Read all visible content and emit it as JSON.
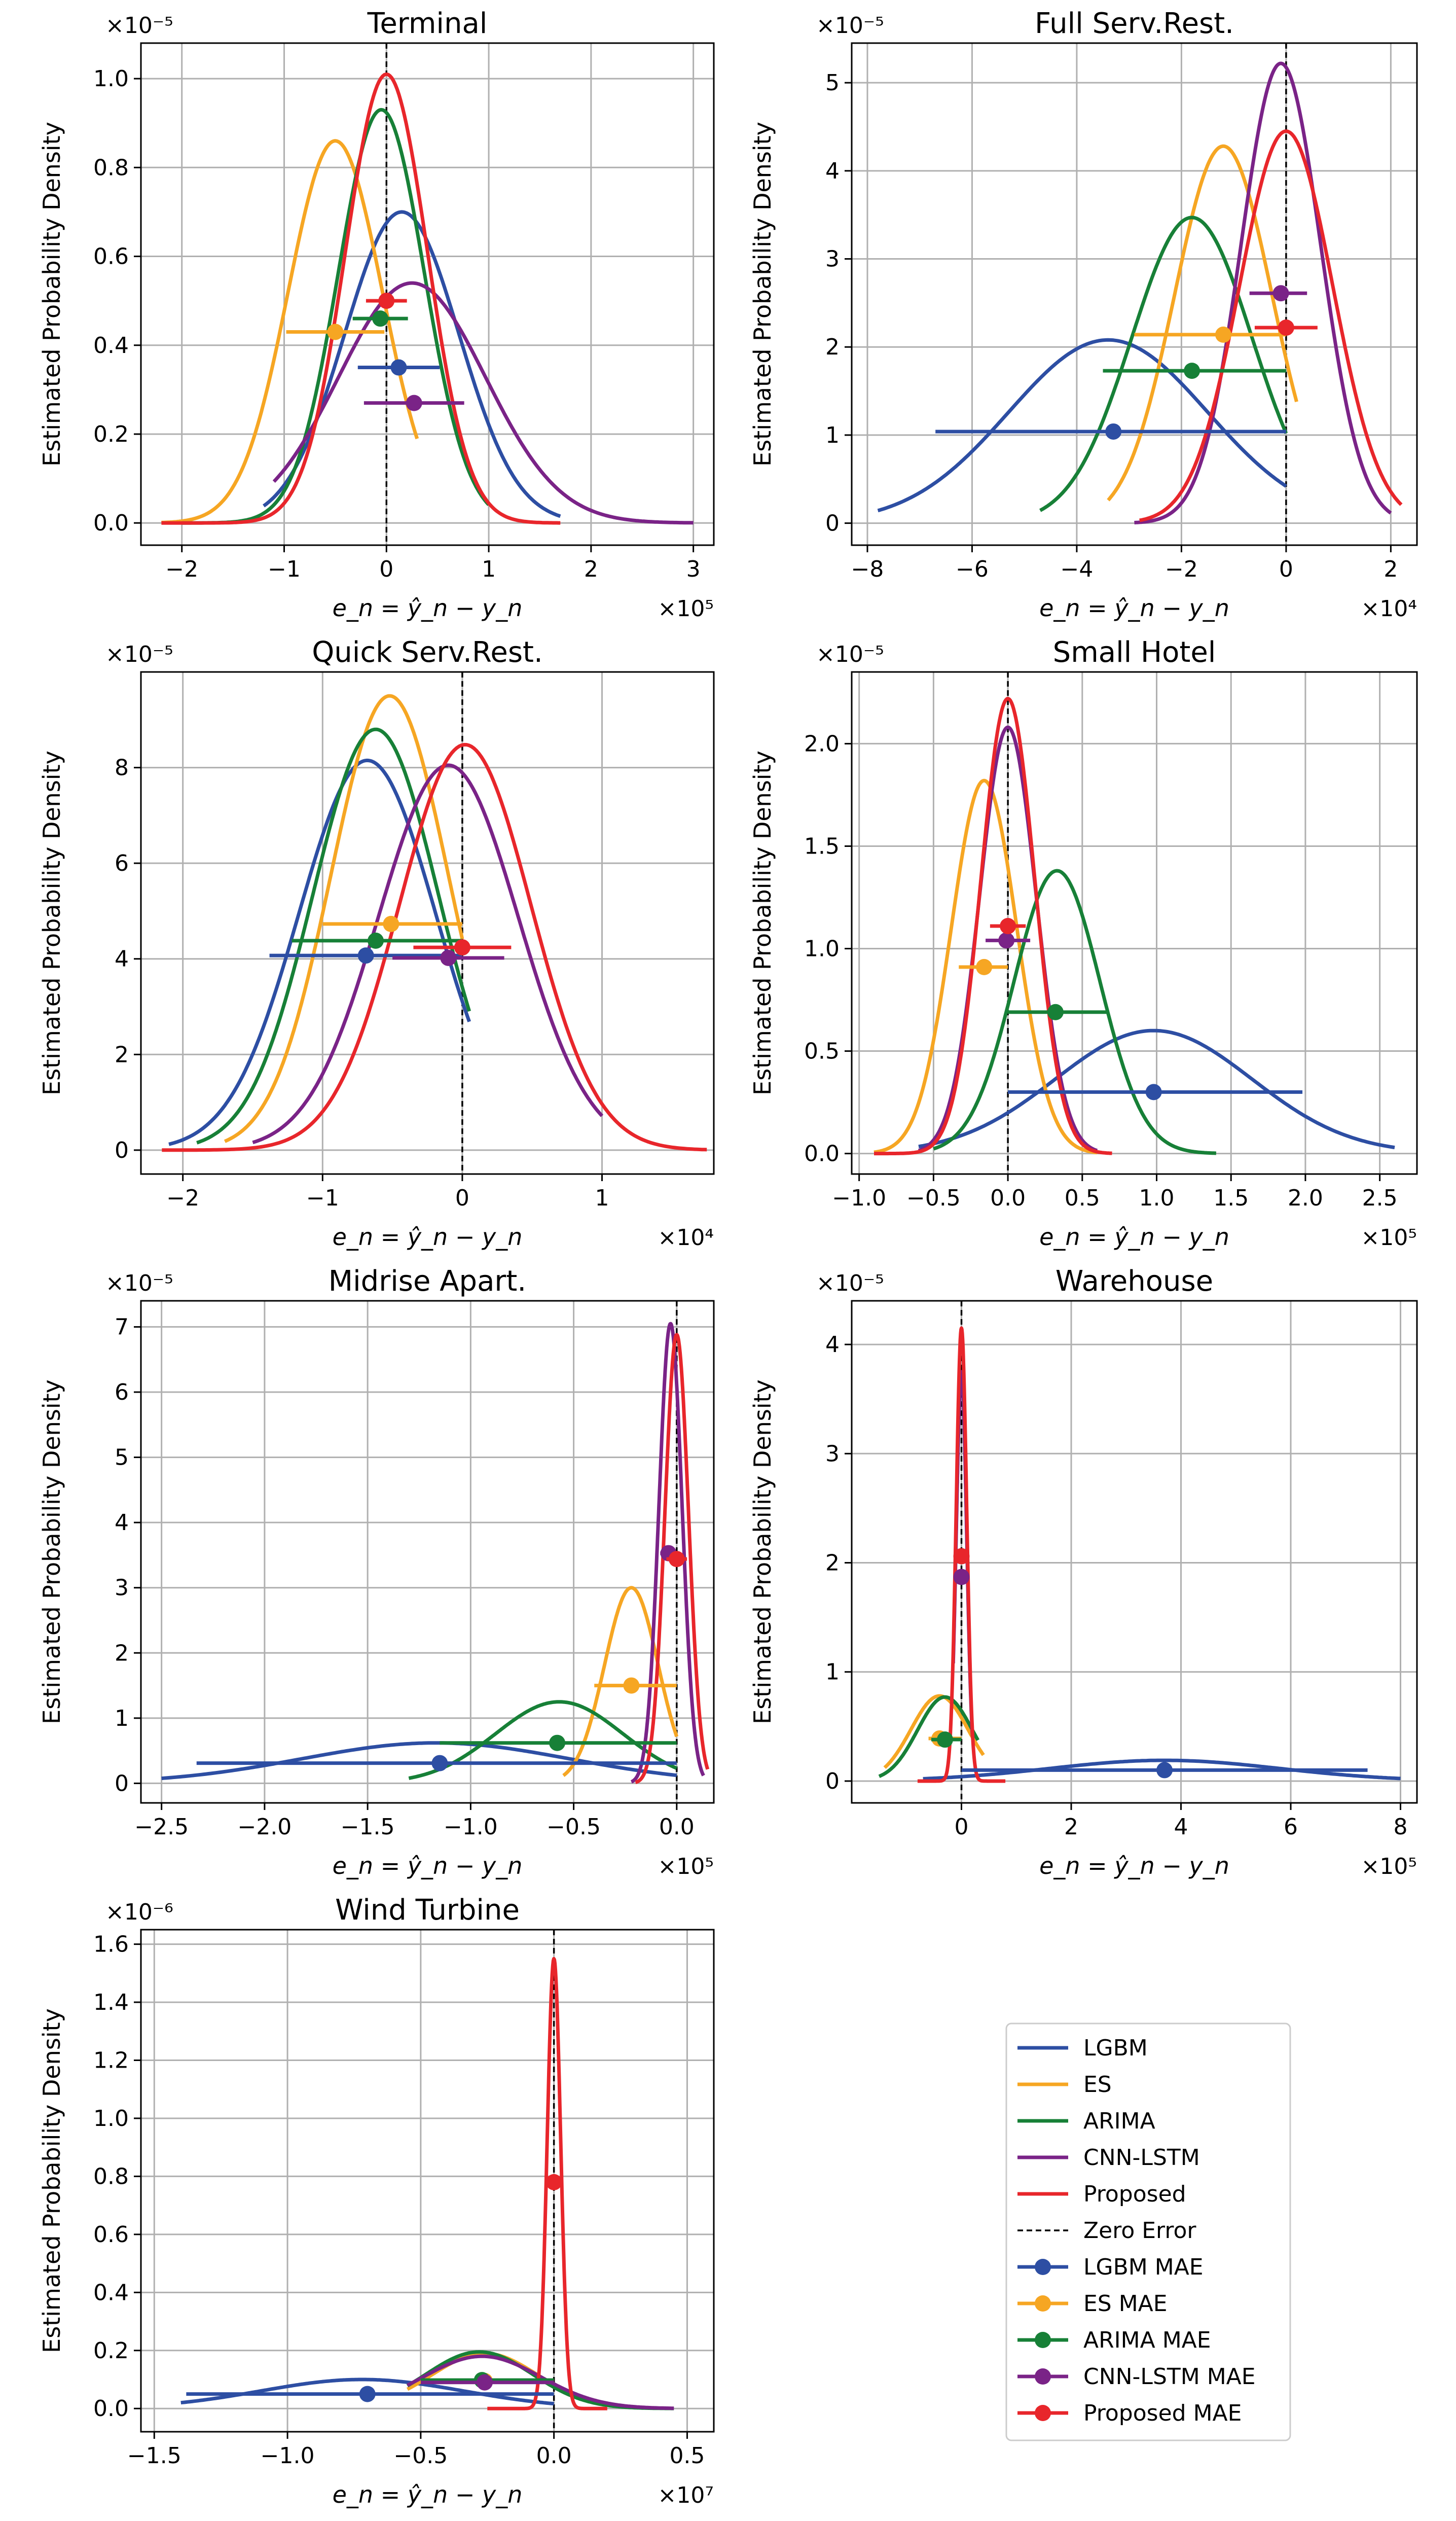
{
  "chart_data": {
    "type": "line",
    "xlabel": "e_n = ŷ_n − y_n",
    "ylabel": "Estimated Probability Density",
    "colors": {
      "LGBM": "#2d4ea3",
      "ES": "#f6a623",
      "ARIMA": "#178037",
      "CNN-LSTM": "#7a2387",
      "Proposed": "#e8262b",
      "zero": "#000000"
    },
    "legend": {
      "position": "bottom-right",
      "entries": [
        {
          "label": "LGBM",
          "kind": "line",
          "color": "#2d4ea3"
        },
        {
          "label": "ES",
          "kind": "line",
          "color": "#f6a623"
        },
        {
          "label": "ARIMA",
          "kind": "line",
          "color": "#178037"
        },
        {
          "label": "CNN-LSTM",
          "kind": "line",
          "color": "#7a2387"
        },
        {
          "label": "Proposed",
          "kind": "line",
          "color": "#e8262b"
        },
        {
          "label": "Zero Error",
          "kind": "dash",
          "color": "#000000"
        },
        {
          "label": "LGBM MAE",
          "kind": "marker",
          "color": "#2d4ea3"
        },
        {
          "label": "ES MAE",
          "kind": "marker",
          "color": "#f6a623"
        },
        {
          "label": "ARIMA MAE",
          "kind": "marker",
          "color": "#178037"
        },
        {
          "label": "CNN-LSTM MAE",
          "kind": "marker",
          "color": "#7a2387"
        },
        {
          "label": "Proposed MAE",
          "kind": "marker",
          "color": "#e8262b"
        }
      ]
    },
    "panels": [
      {
        "title": "Terminal",
        "x_scale_label": "×10⁵",
        "y_scale_label": "×10⁻⁵",
        "xlim": [
          -2.4,
          3.2
        ],
        "ylim": [
          -0.05,
          1.08
        ],
        "xticks": [
          -2,
          -1,
          0,
          1,
          2,
          3
        ],
        "xtick_labels": [
          "−2",
          "−1",
          "0",
          "1",
          "2",
          "3"
        ],
        "yticks": [
          0,
          0.2,
          0.4,
          0.6,
          0.8,
          1.0
        ],
        "ytick_labels": [
          "0.0",
          "0.2",
          "0.4",
          "0.6",
          "0.8",
          "1.0"
        ],
        "series": [
          {
            "name": "LGBM",
            "mean": 0.15,
            "std": 0.56,
            "peak": 0.7,
            "range": [
              -1.2,
              1.7
            ],
            "mae": {
              "x": 0.12,
              "y": 0.35,
              "left": -0.28,
              "right": 0.52
            }
          },
          {
            "name": "ES",
            "mean": -0.5,
            "std": 0.46,
            "peak": 0.86,
            "range": [
              -2.2,
              0.3
            ],
            "mae": {
              "x": -0.5,
              "y": 0.43,
              "left": -0.98,
              "right": -0.02
            }
          },
          {
            "name": "ARIMA",
            "mean": -0.05,
            "std": 0.42,
            "peak": 0.93,
            "range": [
              -2.0,
              1.0
            ],
            "mae": {
              "x": -0.06,
              "y": 0.46,
              "left": -0.33,
              "right": 0.21
            }
          },
          {
            "name": "CNN-LSTM",
            "mean": 0.25,
            "std": 0.72,
            "peak": 0.54,
            "range": [
              -1.1,
              3.0
            ],
            "mae": {
              "x": 0.27,
              "y": 0.27,
              "left": -0.22,
              "right": 0.76
            }
          },
          {
            "name": "Proposed",
            "mean": 0.0,
            "std": 0.4,
            "peak": 1.01,
            "range": [
              -2.2,
              1.7
            ],
            "mae": {
              "x": 0.0,
              "y": 0.5,
              "left": -0.2,
              "right": 0.2
            }
          }
        ]
      },
      {
        "title": "Full Serv.Rest.",
        "x_scale_label": "×10⁴",
        "y_scale_label": "×10⁻⁵",
        "xlim": [
          -8.3,
          2.5
        ],
        "ylim": [
          -0.25,
          5.45
        ],
        "xticks": [
          -8,
          -6,
          -4,
          -2,
          0,
          2
        ],
        "xtick_labels": [
          "−8",
          "−6",
          "−4",
          "−2",
          "0",
          "2"
        ],
        "yticks": [
          0,
          1,
          2,
          3,
          4,
          5
        ],
        "ytick_labels": [
          "0",
          "1",
          "2",
          "3",
          "4",
          "5"
        ],
        "series": [
          {
            "name": "LGBM",
            "mean": -3.4,
            "std": 1.9,
            "peak": 2.08,
            "range": [
              -7.8,
              0.0
            ],
            "mae": {
              "x": -3.3,
              "y": 1.04,
              "left": -6.7,
              "right": 0.0
            }
          },
          {
            "name": "ES",
            "mean": -1.2,
            "std": 0.93,
            "peak": 4.28,
            "range": [
              -3.4,
              0.2
            ],
            "mae": {
              "x": -1.2,
              "y": 2.14,
              "left": -2.9,
              "right": 0.0
            }
          },
          {
            "name": "ARIMA",
            "mean": -1.8,
            "std": 1.15,
            "peak": 3.47,
            "range": [
              -4.7,
              0.0
            ],
            "mae": {
              "x": -1.8,
              "y": 1.73,
              "left": -3.5,
              "right": 0.0
            }
          },
          {
            "name": "CNN-LSTM",
            "mean": -0.1,
            "std": 0.76,
            "peak": 5.22,
            "range": [
              -2.9,
              2.0
            ],
            "mae": {
              "x": -0.1,
              "y": 2.61,
              "left": -0.7,
              "right": 0.4
            }
          },
          {
            "name": "Proposed",
            "mean": 0.0,
            "std": 0.89,
            "peak": 4.45,
            "range": [
              -2.8,
              2.2
            ],
            "mae": {
              "x": 0.0,
              "y": 2.22,
              "left": -0.6,
              "right": 0.6
            }
          }
        ]
      },
      {
        "title": "Quick Serv.Rest.",
        "x_scale_label": "×10⁴",
        "y_scale_label": "×10⁻⁵",
        "xlim": [
          -2.3,
          1.8
        ],
        "ylim": [
          -0.5,
          10.0
        ],
        "xticks": [
          -2,
          -1,
          0,
          1
        ],
        "xtick_labels": [
          "−2",
          "−1",
          "0",
          "1"
        ],
        "yticks": [
          0,
          2,
          4,
          6,
          8
        ],
        "ytick_labels": [
          "0",
          "2",
          "4",
          "6",
          "8"
        ],
        "series": [
          {
            "name": "LGBM",
            "mean": -0.68,
            "std": 0.49,
            "peak": 8.15,
            "range": [
              -2.1,
              0.05
            ],
            "mae": {
              "x": -0.69,
              "y": 4.07,
              "left": -1.38,
              "right": 0.0
            }
          },
          {
            "name": "ES",
            "mean": -0.52,
            "std": 0.42,
            "peak": 9.5,
            "range": [
              -1.7,
              0.0
            ],
            "mae": {
              "x": -0.51,
              "y": 4.73,
              "left": -1.0,
              "right": 0.0
            }
          },
          {
            "name": "ARIMA",
            "mean": -0.62,
            "std": 0.45,
            "peak": 8.8,
            "range": [
              -1.9,
              0.05
            ],
            "mae": {
              "x": -0.62,
              "y": 4.38,
              "left": -1.22,
              "right": 0.0
            }
          },
          {
            "name": "CNN-LSTM",
            "mean": -0.1,
            "std": 0.5,
            "peak": 8.05,
            "range": [
              -1.5,
              1.0
            ],
            "mae": {
              "x": -0.1,
              "y": 4.02,
              "left": -0.5,
              "right": 0.3
            }
          },
          {
            "name": "Proposed",
            "mean": 0.02,
            "std": 0.47,
            "peak": 8.48,
            "range": [
              -2.15,
              1.75
            ],
            "mae": {
              "x": 0.0,
              "y": 4.24,
              "left": -0.35,
              "right": 0.35
            }
          }
        ]
      },
      {
        "title": "Small Hotel",
        "x_scale_label": "×10⁵",
        "y_scale_label": "×10⁻⁵",
        "xlim": [
          -1.05,
          2.75
        ],
        "ylim": [
          -0.1,
          2.35
        ],
        "xticks": [
          -1.0,
          -0.5,
          0.0,
          0.5,
          1.0,
          1.5,
          2.0,
          2.5
        ],
        "xtick_labels": [
          "−1.0",
          "−0.5",
          "0.0",
          "0.5",
          "1.0",
          "1.5",
          "2.0",
          "2.5"
        ],
        "yticks": [
          0,
          0.5,
          1.0,
          1.5,
          2.0
        ],
        "ytick_labels": [
          "0.0",
          "0.5",
          "1.0",
          "1.5",
          "2.0"
        ],
        "series": [
          {
            "name": "LGBM",
            "mean": 0.98,
            "std": 0.66,
            "peak": 0.6,
            "range": [
              -0.6,
              2.6
            ],
            "mae": {
              "x": 0.98,
              "y": 0.3,
              "left": 0.0,
              "right": 1.98
            }
          },
          {
            "name": "ES",
            "mean": -0.16,
            "std": 0.22,
            "peak": 1.82,
            "range": [
              -0.9,
              0.6
            ],
            "mae": {
              "x": -0.16,
              "y": 0.91,
              "left": -0.33,
              "right": 0.0
            }
          },
          {
            "name": "ARIMA",
            "mean": 0.33,
            "std": 0.29,
            "peak": 1.38,
            "range": [
              -0.5,
              1.4
            ],
            "mae": {
              "x": 0.32,
              "y": 0.69,
              "left": 0.0,
              "right": 0.68
            }
          },
          {
            "name": "CNN-LSTM",
            "mean": 0.0,
            "std": 0.19,
            "peak": 2.08,
            "range": [
              -0.6,
              0.6
            ],
            "mae": {
              "x": -0.01,
              "y": 1.04,
              "left": -0.15,
              "right": 0.15
            }
          },
          {
            "name": "Proposed",
            "mean": 0.0,
            "std": 0.18,
            "peak": 2.22,
            "range": [
              -0.9,
              0.7
            ],
            "mae": {
              "x": 0.0,
              "y": 1.11,
              "left": -0.12,
              "right": 0.12
            }
          }
        ]
      },
      {
        "title": "Midrise Apart.",
        "x_scale_label": "×10⁵",
        "y_scale_label": "×10⁻⁵",
        "xlim": [
          -2.6,
          0.18
        ],
        "ylim": [
          -0.3,
          7.4
        ],
        "xticks": [
          -2.5,
          -2.0,
          -1.5,
          -1.0,
          -0.5,
          0.0
        ],
        "xtick_labels": [
          "−2.5",
          "−2.0",
          "−1.5",
          "−1.0",
          "−0.5",
          "0.0"
        ],
        "yticks": [
          0,
          1,
          2,
          3,
          4,
          5,
          6,
          7
        ],
        "ytick_labels": [
          "0",
          "1",
          "2",
          "3",
          "4",
          "5",
          "6",
          "7"
        ],
        "series": [
          {
            "name": "LGBM",
            "mean": -1.17,
            "std": 0.65,
            "peak": 0.62,
            "range": [
              -2.5,
              0.0
            ],
            "mae": {
              "x": -1.15,
              "y": 0.31,
              "left": -2.33,
              "right": 0.0
            }
          },
          {
            "name": "ES",
            "mean": -0.22,
            "std": 0.13,
            "peak": 3.0,
            "range": [
              -0.55,
              0.0
            ],
            "mae": {
              "x": -0.22,
              "y": 1.5,
              "left": -0.4,
              "right": 0.0
            }
          },
          {
            "name": "ARIMA",
            "mean": -0.57,
            "std": 0.31,
            "peak": 1.25,
            "range": [
              -1.3,
              0.0
            ],
            "mae": {
              "x": -0.58,
              "y": 0.62,
              "left": -1.15,
              "right": 0.0
            }
          },
          {
            "name": "CNN-LSTM",
            "mean": -0.03,
            "std": 0.056,
            "peak": 7.05,
            "range": [
              -0.22,
              0.13
            ],
            "mae": {
              "x": -0.04,
              "y": 3.53,
              "left": -0.08,
              "right": 0.0
            }
          },
          {
            "name": "Proposed",
            "mean": 0.0,
            "std": 0.057,
            "peak": 6.88,
            "range": [
              -0.2,
              0.15
            ],
            "mae": {
              "x": 0.0,
              "y": 3.44,
              "left": -0.05,
              "right": 0.05
            }
          }
        ]
      },
      {
        "title": "Warehouse",
        "x_scale_label": "×10⁵",
        "y_scale_label": "×10⁻⁵",
        "xlim": [
          -2.0,
          8.3
        ],
        "ylim": [
          -0.2,
          4.4
        ],
        "xticks": [
          0,
          2,
          4,
          6,
          8
        ],
        "xtick_labels": [
          "0",
          "2",
          "4",
          "6",
          "8"
        ],
        "yticks": [
          0,
          1,
          2,
          3,
          4
        ],
        "ytick_labels": [
          "0",
          "1",
          "2",
          "3",
          "4"
        ],
        "series": [
          {
            "name": "LGBM",
            "mean": 3.7,
            "std": 2.1,
            "peak": 0.19,
            "range": [
              -0.7,
              8.0
            ],
            "mae": {
              "x": 3.7,
              "y": 0.1,
              "left": 0.0,
              "right": 7.4
            }
          },
          {
            "name": "ES",
            "mean": -0.4,
            "std": 0.52,
            "peak": 0.78,
            "range": [
              -1.4,
              0.4
            ],
            "mae": {
              "x": -0.4,
              "y": 0.39,
              "left": -0.6,
              "right": 0.0
            }
          },
          {
            "name": "ARIMA",
            "mean": -0.3,
            "std": 0.5,
            "peak": 0.77,
            "range": [
              -1.5,
              0.3
            ],
            "mae": {
              "x": -0.3,
              "y": 0.38,
              "left": -0.55,
              "right": 0.0
            }
          },
          {
            "name": "CNN-LSTM",
            "mean": 0.0,
            "std": 0.095,
            "peak": 3.75,
            "range": [
              -0.15,
              0.2
            ],
            "mae": {
              "x": 0.0,
              "y": 1.87,
              "left": -0.05,
              "right": 0.05
            }
          },
          {
            "name": "Proposed",
            "mean": 0.0,
            "std": 0.095,
            "peak": 4.15,
            "range": [
              -0.8,
              0.8
            ],
            "mae": {
              "x": 0.0,
              "y": 2.06,
              "left": -0.05,
              "right": 0.05
            }
          }
        ]
      },
      {
        "title": "Wind Turbine",
        "x_scale_label": "×10⁷",
        "y_scale_label": "×10⁻⁶",
        "xlim": [
          -1.55,
          0.6
        ],
        "ylim": [
          -0.08,
          1.65
        ],
        "xticks": [
          -1.5,
          -1.0,
          -0.5,
          0.0,
          0.5
        ],
        "xtick_labels": [
          "−1.5",
          "−1.0",
          "−0.5",
          "0.0",
          "0.5"
        ],
        "yticks": [
          0,
          0.2,
          0.4,
          0.6,
          0.8,
          1.0,
          1.2,
          1.4,
          1.6
        ],
        "ytick_labels": [
          "0.0",
          "0.2",
          "0.4",
          "0.6",
          "0.8",
          "1.0",
          "1.2",
          "1.4",
          "1.6"
        ],
        "series": [
          {
            "name": "LGBM",
            "mean": -0.72,
            "std": 0.38,
            "peak": 0.1,
            "range": [
              -1.4,
              0.0
            ],
            "mae": {
              "x": -0.7,
              "y": 0.05,
              "left": -1.38,
              "right": 0.0
            }
          },
          {
            "name": "ES",
            "mean": -0.26,
            "std": 0.2,
            "peak": 0.19,
            "range": [
              -0.55,
              0.0
            ],
            "mae": {
              "x": -0.26,
              "y": 0.095,
              "left": -0.5,
              "right": 0.0
            }
          },
          {
            "name": "ARIMA",
            "mean": -0.28,
            "std": 0.2,
            "peak": 0.195,
            "range": [
              -0.55,
              0.45
            ],
            "mae": {
              "x": -0.27,
              "y": 0.098,
              "left": -0.5,
              "right": 0.0
            }
          },
          {
            "name": "CNN-LSTM",
            "mean": -0.27,
            "std": 0.22,
            "peak": 0.18,
            "range": [
              -0.55,
              0.45
            ],
            "mae": {
              "x": -0.26,
              "y": 0.09,
              "left": -0.5,
              "right": 0.0
            }
          },
          {
            "name": "Proposed",
            "mean": 0.0,
            "std": 0.025,
            "peak": 1.55,
            "range": [
              -0.25,
              0.2
            ],
            "mae": {
              "x": 0.0,
              "y": 0.78,
              "left": -0.03,
              "right": 0.03
            }
          }
        ]
      }
    ]
  }
}
